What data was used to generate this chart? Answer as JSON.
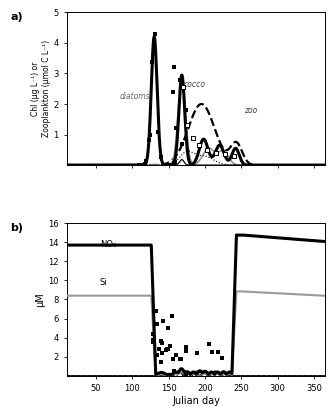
{
  "panel_a": {
    "title": "a)",
    "ylabel": "Chl (μg L⁻¹) or\nZooplankton (μmol C L⁻¹)",
    "ylim": [
      0,
      5
    ],
    "yticks": [
      1,
      2,
      3,
      4,
      5
    ],
    "xlim": [
      10,
      365
    ],
    "xticks": [
      50,
      100,
      150,
      200,
      250,
      300,
      350
    ],
    "labels": {
      "diatoms": [
        82,
        2.15
      ],
      "cocco": [
        170,
        2.55
      ],
      "zoo": [
        253,
        1.7
      ]
    }
  },
  "panel_b": {
    "title": "b)",
    "ylabel": "μM",
    "xlabel": "Julian day",
    "ylim": [
      0,
      16
    ],
    "yticks": [
      2,
      4,
      6,
      8,
      10,
      12,
      14,
      16
    ],
    "xlim": [
      10,
      365
    ],
    "xticks": [
      50,
      100,
      150,
      200,
      250,
      300,
      350
    ],
    "labels": {
      "NO3": [
        55,
        13.5
      ],
      "Si": [
        55,
        9.5
      ]
    }
  }
}
